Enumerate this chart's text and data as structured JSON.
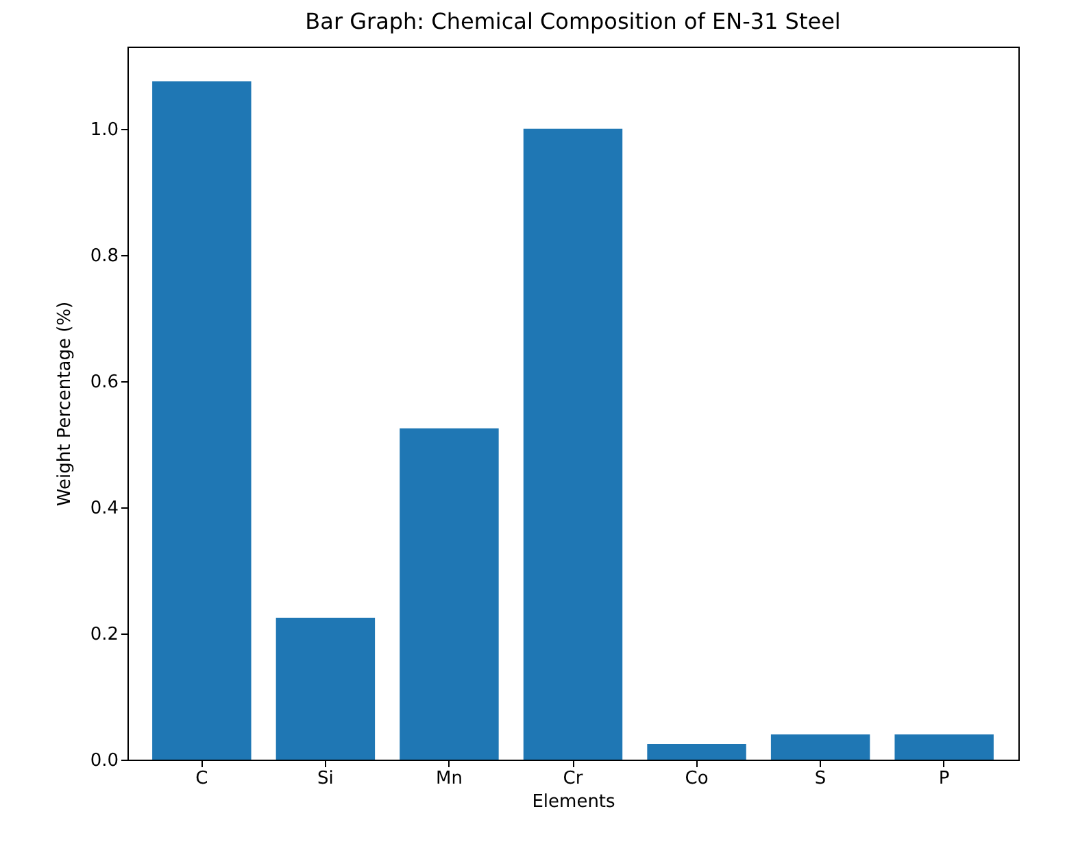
{
  "chart_data": {
    "type": "bar",
    "title": "Bar Graph: Chemical Composition of EN-31 Steel",
    "xlabel": "Elements",
    "ylabel": "Weight Percentage (%)",
    "categories": [
      "C",
      "Si",
      "Mn",
      "Cr",
      "Co",
      "S",
      "P"
    ],
    "values": [
      1.075,
      0.225,
      0.525,
      1.0,
      0.025,
      0.04,
      0.04
    ],
    "color": "#1f77b4",
    "ylim": [
      0,
      1.13
    ],
    "yticks": [
      {
        "value": 0,
        "label": "0.0"
      },
      {
        "value": 0.2,
        "label": "0.2"
      },
      {
        "value": 0.4,
        "label": "0.4"
      },
      {
        "value": 0.6,
        "label": "0.6"
      },
      {
        "value": 0.8,
        "label": "0.8"
      },
      {
        "value": 1.0,
        "label": "1.0"
      }
    ]
  }
}
